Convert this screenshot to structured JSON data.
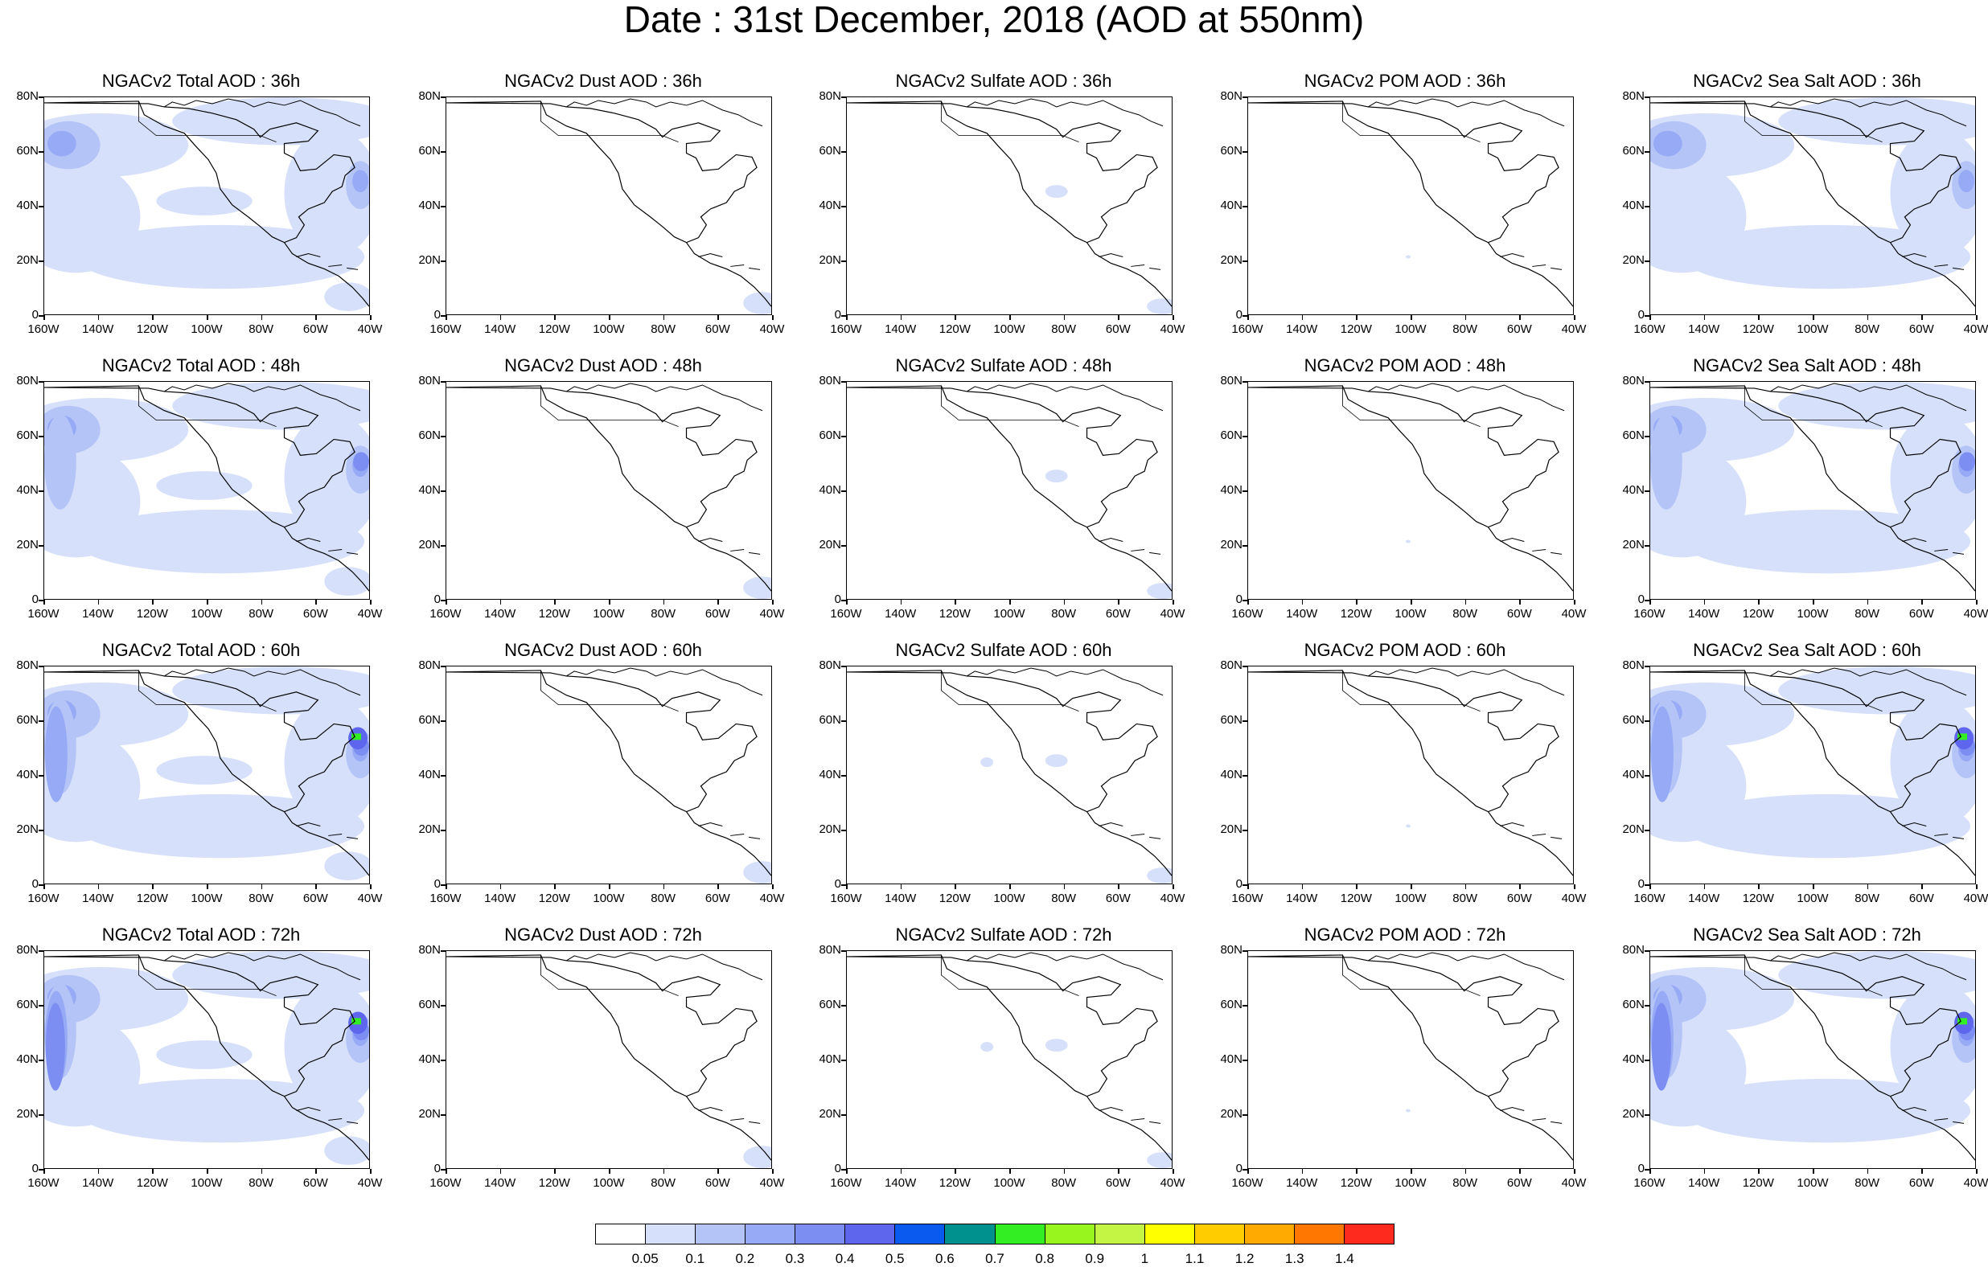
{
  "title": "Date : 31st December, 2018 (AOD at 550nm)",
  "panels": [
    {
      "title": "NGACv2 Total AOD : 36h",
      "species": "total",
      "hour": 36
    },
    {
      "title": "NGACv2 Dust AOD : 36h",
      "species": "dust",
      "hour": 36
    },
    {
      "title": "NGACv2 Sulfate AOD : 36h",
      "species": "sulfate",
      "hour": 36
    },
    {
      "title": "NGACv2 POM AOD : 36h",
      "species": "pom",
      "hour": 36
    },
    {
      "title": "NGACv2 Sea Salt AOD : 36h",
      "species": "seasalt",
      "hour": 36
    },
    {
      "title": "NGACv2 Total AOD : 48h",
      "species": "total",
      "hour": 48
    },
    {
      "title": "NGACv2 Dust AOD : 48h",
      "species": "dust",
      "hour": 48
    },
    {
      "title": "NGACv2 Sulfate AOD : 48h",
      "species": "sulfate",
      "hour": 48
    },
    {
      "title": "NGACv2 POM AOD : 48h",
      "species": "pom",
      "hour": 48
    },
    {
      "title": "NGACv2 Sea Salt AOD : 48h",
      "species": "seasalt",
      "hour": 48
    },
    {
      "title": "NGACv2 Total AOD : 60h",
      "species": "total",
      "hour": 60
    },
    {
      "title": "NGACv2 Dust AOD : 60h",
      "species": "dust",
      "hour": 60
    },
    {
      "title": "NGACv2 Sulfate AOD : 60h",
      "species": "sulfate",
      "hour": 60
    },
    {
      "title": "NGACv2 POM AOD : 60h",
      "species": "pom",
      "hour": 60
    },
    {
      "title": "NGACv2 Sea Salt AOD : 60h",
      "species": "seasalt",
      "hour": 60
    },
    {
      "title": "NGACv2 Total AOD : 72h",
      "species": "total",
      "hour": 72
    },
    {
      "title": "NGACv2 Dust AOD : 72h",
      "species": "dust",
      "hour": 72
    },
    {
      "title": "NGACv2 Sulfate AOD : 72h",
      "species": "sulfate",
      "hour": 72
    },
    {
      "title": "NGACv2 POM AOD : 72h",
      "species": "pom",
      "hour": 72
    },
    {
      "title": "NGACv2 Sea Salt  AOD : 72h",
      "species": "seasalt",
      "hour": 72
    }
  ],
  "axes": {
    "lat_labels": [
      "80N",
      "60N",
      "40N",
      "20N",
      "0"
    ],
    "lon_labels": [
      "160W",
      "140W",
      "120W",
      "100W",
      "80W",
      "60W",
      "40W"
    ]
  },
  "colorbar": {
    "colors": [
      "#ffffff",
      "#d6e0fa",
      "#b4c4f7",
      "#96aaf5",
      "#7d8ef3",
      "#5f66ee",
      "#0a5af0",
      "#00908e",
      "#33ee22",
      "#99f51e",
      "#c4f545",
      "#ffff00",
      "#ffcc00",
      "#ffaa00",
      "#ff7700",
      "#ff2a1e"
    ],
    "labels": [
      "0.05",
      "0.1",
      "0.2",
      "0.3",
      "0.4",
      "0.5",
      "0.6",
      "0.7",
      "0.8",
      "0.9",
      "1",
      "1.1",
      "1.2",
      "1.3",
      "1.4"
    ]
  }
}
